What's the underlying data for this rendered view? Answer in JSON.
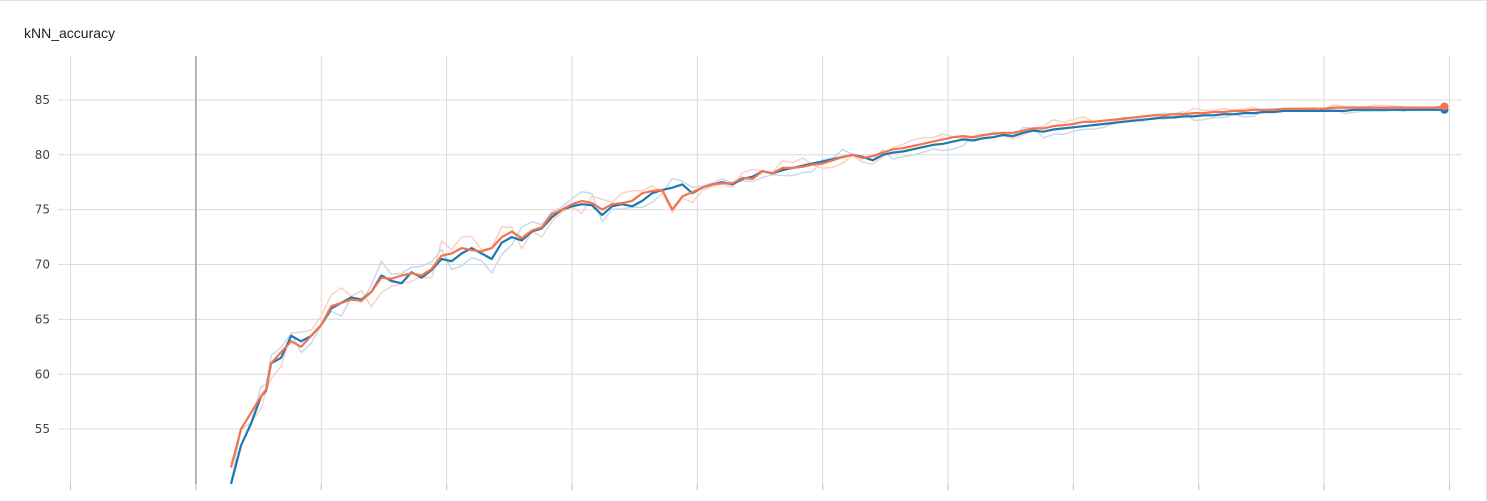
{
  "card": {
    "title": "kNN_accuracy"
  },
  "chart_data": {
    "type": "line",
    "title": "kNN_accuracy",
    "xlabel": "",
    "ylabel": "",
    "xlim": [
      -5,
      555
    ],
    "ylim": [
      50,
      89
    ],
    "yticks": [
      55,
      60,
      65,
      70,
      75,
      80,
      85
    ],
    "xgrid_values": [
      0,
      50,
      100,
      150,
      200,
      250,
      300,
      350,
      400,
      450,
      500,
      550
    ],
    "highlight_vertical_x": 50,
    "grid": true,
    "legend": "none",
    "smoothing": "raw series drawn faint, smoothed series drawn solid",
    "series": [
      {
        "color": "#1f77b4",
        "raw_color": "#c6dbef",
        "x": [
          64,
          68,
          72,
          76,
          78,
          80,
          84,
          88,
          92,
          96,
          100,
          104,
          108,
          112,
          116,
          120,
          124,
          128,
          132,
          136,
          140,
          144,
          148,
          152,
          156,
          160,
          164,
          168,
          172,
          176,
          180,
          184,
          188,
          192,
          196,
          200,
          204,
          208,
          212,
          216,
          220,
          224,
          228,
          232,
          236,
          240,
          244,
          248,
          252,
          256,
          260,
          264,
          268,
          272,
          276,
          280,
          284,
          288,
          292,
          296,
          300,
          304,
          308,
          312,
          316,
          320,
          324,
          328,
          332,
          336,
          340,
          344,
          348,
          352,
          356,
          360,
          364,
          368,
          372,
          376,
          380,
          384,
          388,
          392,
          396,
          400,
          404,
          408,
          412,
          416,
          420,
          424,
          428,
          432,
          436,
          440,
          444,
          448,
          452,
          456,
          460,
          464,
          468,
          472,
          476,
          480,
          484,
          488,
          492,
          496,
          500,
          504,
          508,
          512,
          516,
          520,
          524,
          528,
          532,
          536,
          540,
          544,
          548
        ],
        "y": [
          50.0,
          53.5,
          55.5,
          58.0,
          58.5,
          61.0,
          61.5,
          63.5,
          63.0,
          63.5,
          64.5,
          66.0,
          66.5,
          67.0,
          66.8,
          67.5,
          69.0,
          68.5,
          68.3,
          69.3,
          68.8,
          69.5,
          70.5,
          70.3,
          71.0,
          71.5,
          71.0,
          70.5,
          72.0,
          72.5,
          72.2,
          73.0,
          73.3,
          74.3,
          75.0,
          75.3,
          75.5,
          75.4,
          74.5,
          75.3,
          75.5,
          75.3,
          75.8,
          76.5,
          76.8,
          77.0,
          77.3,
          76.5,
          77.0,
          77.3,
          77.5,
          77.3,
          77.8,
          78.0,
          78.5,
          78.3,
          78.6,
          78.8,
          79.0,
          79.2,
          79.4,
          79.6,
          79.8,
          80.0,
          79.8,
          79.5,
          80.0,
          80.2,
          80.3,
          80.5,
          80.7,
          80.9,
          81.0,
          81.2,
          81.4,
          81.3,
          81.5,
          81.6,
          81.8,
          81.7,
          82.0,
          82.2,
          82.1,
          82.3,
          82.4,
          82.5,
          82.6,
          82.7,
          82.8,
          82.9,
          83.0,
          83.1,
          83.2,
          83.3,
          83.4,
          83.4,
          83.5,
          83.5,
          83.6,
          83.6,
          83.7,
          83.7,
          83.8,
          83.8,
          83.9,
          83.9,
          84.0,
          84.0,
          84.0,
          84.0,
          84.0,
          84.0,
          84.0,
          84.1,
          84.1,
          84.1,
          84.1,
          84.1,
          84.1,
          84.1,
          84.1,
          84.1,
          84.1
        ]
      },
      {
        "color": "#f4744c",
        "raw_color": "#fbd2c3",
        "x": [
          64,
          68,
          72,
          76,
          78,
          80,
          84,
          88,
          92,
          96,
          100,
          104,
          108,
          112,
          116,
          120,
          124,
          128,
          132,
          136,
          140,
          144,
          148,
          152,
          156,
          160,
          164,
          168,
          172,
          176,
          180,
          184,
          188,
          192,
          196,
          200,
          204,
          208,
          212,
          216,
          220,
          224,
          228,
          232,
          236,
          240,
          244,
          248,
          252,
          256,
          260,
          264,
          268,
          272,
          276,
          280,
          284,
          288,
          292,
          296,
          300,
          304,
          308,
          312,
          316,
          320,
          324,
          328,
          332,
          336,
          340,
          344,
          348,
          352,
          356,
          360,
          364,
          368,
          372,
          376,
          380,
          384,
          388,
          392,
          396,
          400,
          404,
          408,
          412,
          416,
          420,
          424,
          428,
          432,
          436,
          440,
          444,
          448,
          452,
          456,
          460,
          464,
          468,
          472,
          476,
          480,
          484,
          488,
          492,
          496,
          500,
          504,
          508,
          512,
          516,
          520,
          524,
          528,
          532,
          536,
          540,
          544,
          548
        ],
        "y": [
          51.5,
          55.0,
          56.5,
          58.0,
          58.6,
          61.0,
          62.0,
          63.0,
          62.5,
          63.5,
          64.5,
          66.2,
          66.5,
          66.8,
          66.7,
          67.5,
          68.8,
          68.7,
          69.0,
          69.2,
          69.0,
          69.6,
          70.8,
          71.0,
          71.5,
          71.3,
          71.2,
          71.5,
          72.5,
          73.0,
          72.4,
          73.1,
          73.4,
          74.6,
          75.0,
          75.5,
          75.8,
          75.6,
          75.0,
          75.5,
          75.6,
          75.8,
          76.5,
          76.7,
          76.8,
          75.0,
          76.2,
          76.6,
          77.0,
          77.3,
          77.4,
          77.4,
          77.9,
          77.8,
          78.5,
          78.3,
          78.8,
          78.8,
          78.9,
          79.1,
          79.2,
          79.5,
          79.8,
          80.0,
          79.7,
          79.9,
          80.2,
          80.5,
          80.6,
          80.8,
          81.0,
          81.2,
          81.4,
          81.6,
          81.7,
          81.6,
          81.8,
          81.9,
          82.0,
          82.0,
          82.2,
          82.4,
          82.4,
          82.6,
          82.7,
          82.8,
          83.0,
          83.0,
          83.1,
          83.2,
          83.3,
          83.4,
          83.5,
          83.6,
          83.6,
          83.7,
          83.7,
          83.8,
          83.8,
          83.9,
          83.9,
          84.0,
          84.0,
          84.1,
          84.1,
          84.1,
          84.2,
          84.2,
          84.2,
          84.2,
          84.2,
          84.3,
          84.3,
          84.3,
          84.3,
          84.3,
          84.3,
          84.3,
          84.3,
          84.3,
          84.3,
          84.3,
          84.4
        ]
      }
    ]
  }
}
